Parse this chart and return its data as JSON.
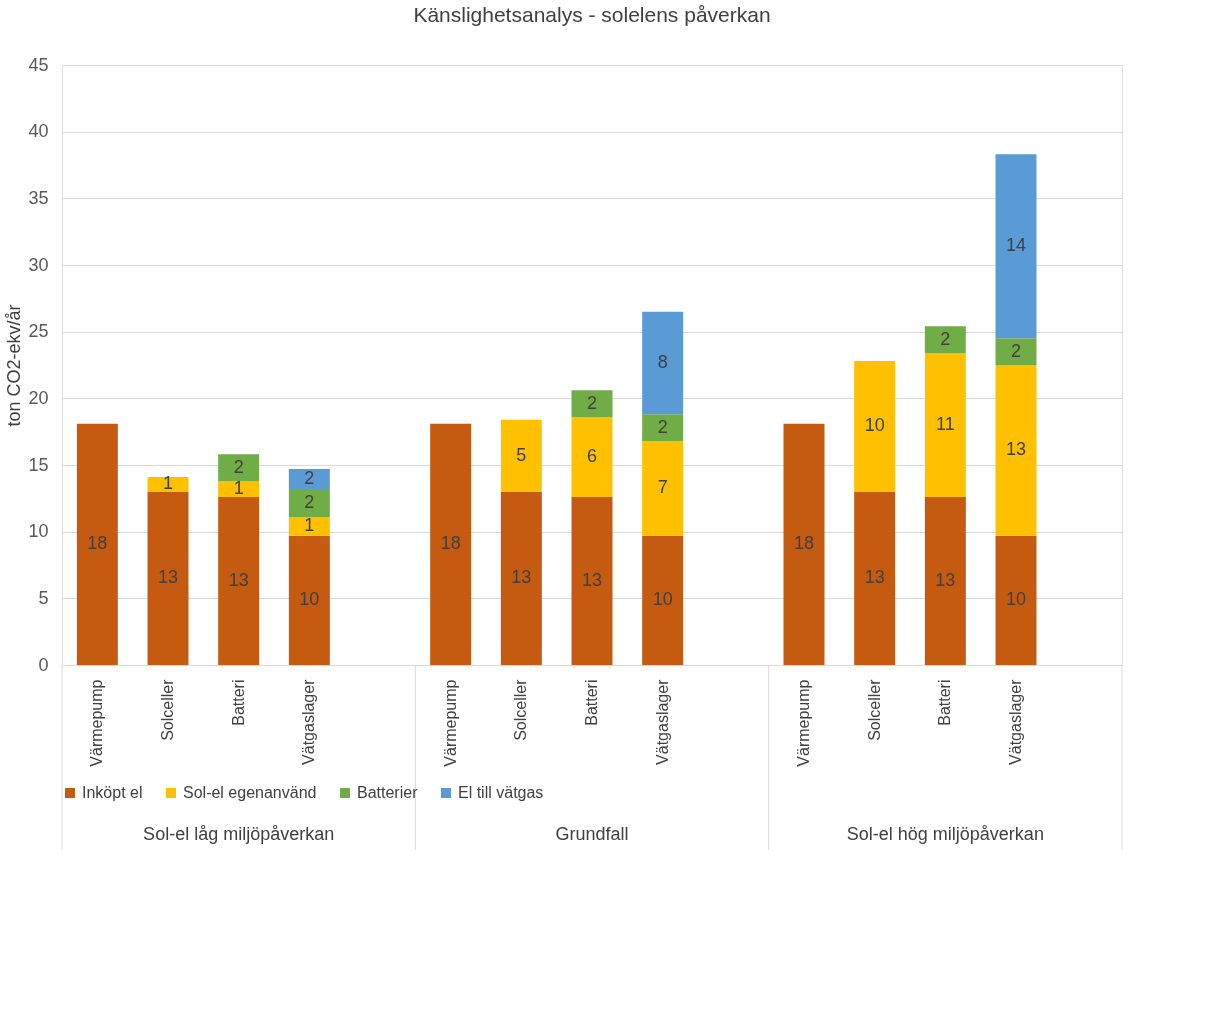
{
  "chart_data": {
    "type": "bar",
    "stacked": true,
    "title": "Känslighetsanalys - solelens påverkan",
    "ylabel": "ton CO2-ekv/år",
    "categories": [
      "Värmepump",
      "Solceller",
      "Batteri",
      "Vätgaslager",
      null,
      "Värmepump",
      "Solceller",
      "Batteri",
      "Vätgaslager",
      null,
      "Värmepump",
      "Solceller",
      "Batteri",
      "Vätgaslager",
      null
    ],
    "series": [
      {
        "name": "Inköpt el",
        "color": "#c55a11",
        "values": [
          18.1,
          13.0,
          12.6,
          9.7,
          null,
          18.1,
          13.0,
          12.6,
          9.7,
          null,
          18.1,
          13.0,
          12.6,
          9.7,
          null
        ],
        "value_labels": [
          "18",
          "13",
          "13",
          "10",
          null,
          "18",
          "13",
          "13",
          "10",
          null,
          "18",
          "13",
          "13",
          "10",
          null
        ]
      },
      {
        "name": "Sol-el egenanvänd",
        "color": "#ffc000",
        "values": [
          null,
          1.1,
          1.2,
          1.4,
          null,
          null,
          5.4,
          6.0,
          7.1,
          null,
          null,
          9.8,
          10.8,
          12.8,
          null
        ],
        "value_labels": [
          null,
          "1",
          "1",
          "1",
          null,
          null,
          "5",
          "6",
          "7",
          null,
          null,
          "10",
          "11",
          "13",
          null
        ]
      },
      {
        "name": "Batterier",
        "color": "#70ad47",
        "values": [
          null,
          null,
          2.0,
          2.1,
          null,
          null,
          null,
          2.0,
          2.0,
          null,
          null,
          null,
          2.0,
          2.0,
          null
        ],
        "value_labels": [
          null,
          null,
          "2",
          "2",
          null,
          null,
          null,
          "2",
          "2",
          null,
          null,
          null,
          "2",
          "2",
          null
        ]
      },
      {
        "name": "El till vätgas",
        "color": "#5b9bd5",
        "values": [
          null,
          null,
          null,
          1.5,
          null,
          null,
          null,
          null,
          7.7,
          null,
          null,
          null,
          null,
          13.8,
          null
        ],
        "value_labels": [
          null,
          null,
          null,
          "2",
          null,
          null,
          null,
          null,
          "8",
          null,
          null,
          null,
          null,
          "14",
          null
        ]
      }
    ],
    "ylim": [
      0,
      45
    ],
    "yticks": [
      0,
      5,
      10,
      15,
      20,
      25,
      30,
      35,
      40,
      45
    ],
    "grid": "y",
    "legend": "bottom",
    "annotations": [
      "Sol-el låg miljöpåverkan",
      "Grundfall",
      "Sol-el hög miljöpåverkan"
    ]
  }
}
